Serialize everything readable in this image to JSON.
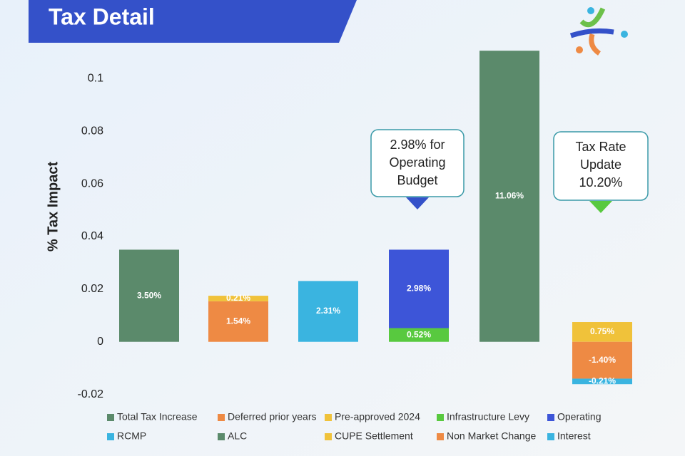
{
  "chart_data": {
    "type": "stacked_bar",
    "title": "Tax Detail",
    "y_label": "% Tax Impact",
    "categories": [
      null,
      null,
      null,
      null,
      null,
      null
    ],
    "ylim": [
      -0.022,
      0.112
    ],
    "yticks": [
      -0.02,
      0,
      0.02,
      0.04,
      0.06,
      0.08,
      0.1
    ],
    "grid": false,
    "series": [
      {
        "name": "Total Tax Increase",
        "color": "#5b8a6b",
        "values": [
          0.035,
          null,
          null,
          null,
          null,
          null
        ],
        "value_labels": [
          "3.50%",
          null,
          null,
          null,
          null,
          null
        ]
      },
      {
        "name": "Deferred prior years",
        "color": "#ee8a44",
        "values": [
          null,
          0.0154,
          null,
          null,
          null,
          null
        ],
        "value_labels": [
          null,
          "1.54%",
          null,
          null,
          null,
          null
        ]
      },
      {
        "name": "Pre-approved 2024",
        "color": "#f0c23a",
        "values": [
          null,
          0.0021,
          null,
          null,
          null,
          null
        ],
        "value_labels": [
          null,
          "0.21%",
          null,
          null,
          null,
          null
        ]
      },
      {
        "name": "Infrastructure Levy",
        "color": "#58c93f",
        "values": [
          null,
          null,
          null,
          0.0052,
          null,
          null
        ],
        "value_labels": [
          null,
          null,
          null,
          "0.52%",
          null,
          null
        ]
      },
      {
        "name": "Operating",
        "color": "#3d55d8",
        "values": [
          null,
          null,
          null,
          0.0298,
          null,
          null
        ],
        "value_labels": [
          null,
          null,
          null,
          "2.98%",
          null,
          null
        ]
      },
      {
        "name": "RCMP",
        "color": "#3ab4e0",
        "values": [
          null,
          null,
          0.0231,
          null,
          null,
          null
        ],
        "value_labels": [
          null,
          null,
          "2.31%",
          null,
          null,
          null
        ]
      },
      {
        "name": "ALC",
        "color": "#5b8a6b",
        "values": [
          null,
          null,
          null,
          null,
          0.1106,
          null
        ],
        "value_labels": [
          null,
          null,
          null,
          null,
          "11.06%",
          null
        ]
      },
      {
        "name": "CUPE Settlement",
        "color": "#f0c23a",
        "values": [
          null,
          null,
          null,
          null,
          null,
          0.0075
        ],
        "value_labels": [
          null,
          null,
          null,
          null,
          null,
          "0.75%"
        ]
      },
      {
        "name": "Non Market Change",
        "color": "#ee8a44",
        "values": [
          null,
          null,
          null,
          null,
          null,
          -0.014
        ],
        "value_labels": [
          null,
          null,
          null,
          null,
          null,
          "-1.40%"
        ]
      },
      {
        "name": "Interest",
        "color": "#3ab4e0",
        "values": [
          null,
          null,
          null,
          null,
          null,
          -0.0021
        ],
        "value_labels": [
          null,
          null,
          null,
          null,
          null,
          "-0.21%"
        ]
      }
    ],
    "annotations": [
      {
        "lines": [
          "2.98% for",
          "Operating",
          "Budget"
        ]
      },
      {
        "lines": [
          "Tax Rate",
          "Update",
          "10.20%"
        ]
      }
    ]
  }
}
